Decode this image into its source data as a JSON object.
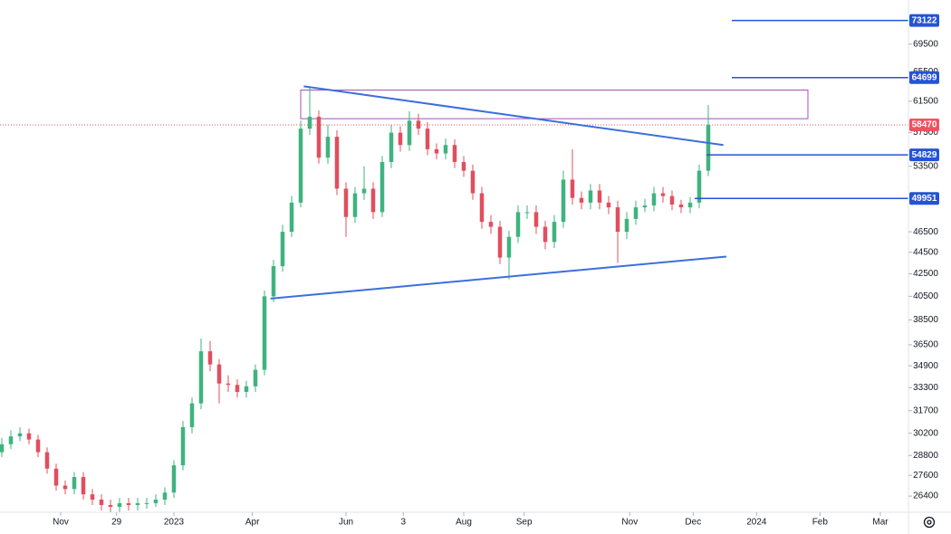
{
  "chart_data": {
    "type": "candlestick",
    "log_scale": true,
    "up_color": "#3fb37f",
    "down_color": "#e04f5f",
    "xlim": [
      0,
      300
    ],
    "ylim": [
      25500,
      76400
    ],
    "xticks": [
      {
        "value": 19.5,
        "label": "Nov"
      },
      {
        "value": 38,
        "label": "29"
      },
      {
        "value": 57,
        "label": "2023"
      },
      {
        "value": 83,
        "label": "Apr"
      },
      {
        "value": 114,
        "label": "Jun"
      },
      {
        "value": 133,
        "label": "3"
      },
      {
        "value": 153,
        "label": "Aug"
      },
      {
        "value": 173,
        "label": "Sep"
      },
      {
        "value": 208,
        "label": "Nov"
      },
      {
        "value": 229,
        "label": "Dec"
      },
      {
        "value": 250,
        "label": "2024"
      },
      {
        "value": 271,
        "label": "Feb"
      },
      {
        "value": 291,
        "label": "Mar"
      }
    ],
    "yticks": [
      26400,
      27600,
      28800,
      30200,
      31700,
      33300,
      34900,
      36500,
      38500,
      40500,
      42500,
      44500,
      46500,
      53500,
      57500,
      61500,
      65500,
      69500
    ],
    "x": [
      0,
      3,
      6,
      9,
      12,
      15,
      18,
      21,
      24,
      27,
      30,
      33,
      36,
      39,
      42,
      45,
      48,
      51,
      54,
      57,
      60,
      63,
      66,
      69,
      72,
      75,
      78,
      81,
      84,
      87,
      90,
      93,
      96,
      99,
      102,
      105,
      108,
      111,
      114,
      117,
      120,
      123,
      126,
      129,
      132,
      135,
      138,
      141,
      144,
      147,
      150,
      153,
      156,
      159,
      162,
      165,
      168,
      171,
      174,
      177,
      180,
      183,
      186,
      189,
      192,
      195,
      198,
      201,
      204,
      207,
      210,
      213,
      216,
      219,
      222,
      225,
      228,
      231,
      234
    ],
    "open": [
      29000,
      29500,
      30000,
      30200,
      29800,
      29000,
      28000,
      27000,
      26800,
      27500,
      26500,
      26200,
      25900,
      25800,
      26000,
      25900,
      26000,
      26000,
      26200,
      26600,
      28200,
      30600,
      32200,
      36000,
      35000,
      33600,
      33500,
      33000,
      33400,
      34600,
      40500,
      43200,
      46500,
      49500,
      58000,
      59500,
      54500,
      57000,
      51000,
      48000,
      50500,
      51000,
      48500,
      54000,
      57500,
      56000,
      59000,
      58000,
      55500,
      55000,
      56000,
      54000,
      53000,
      50500,
      47500,
      47000,
      44000,
      46000,
      48500,
      48500,
      47000,
      45500,
      47500,
      52000,
      50000,
      49500,
      50800,
      49500,
      49000,
      46500,
      47800,
      49000,
      49200,
      50500,
      50200,
      49300,
      49000,
      49500,
      53000
    ],
    "high": [
      29900,
      30400,
      30600,
      30500,
      30100,
      29300,
      28300,
      27300,
      27800,
      27800,
      26800,
      26500,
      26200,
      26300,
      26300,
      26300,
      26300,
      26500,
      26900,
      28500,
      31000,
      32600,
      37000,
      36800,
      35400,
      34200,
      33900,
      33800,
      35000,
      41000,
      43800,
      47200,
      50200,
      59000,
      63500,
      60300,
      58500,
      57800,
      51700,
      51200,
      53500,
      51700,
      54700,
      58500,
      58300,
      60200,
      59900,
      58800,
      56200,
      56800,
      56700,
      54700,
      53700,
      51200,
      48200,
      47600,
      46600,
      49200,
      49200,
      49200,
      47600,
      48200,
      53000,
      55500,
      50700,
      51500,
      51500,
      50200,
      49700,
      48500,
      49700,
      49900,
      51200,
      51200,
      50800,
      49800,
      50100,
      53700,
      61000
    ],
    "low": [
      28700,
      29200,
      29700,
      29500,
      28700,
      27700,
      26700,
      26500,
      26500,
      26200,
      25900,
      25600,
      25500,
      25500,
      25600,
      25600,
      25700,
      25800,
      25900,
      26300,
      27900,
      30200,
      31800,
      34500,
      32200,
      33000,
      32600,
      32600,
      33000,
      34200,
      40000,
      42700,
      46000,
      49000,
      57200,
      53800,
      53800,
      50300,
      46000,
      47400,
      49800,
      47800,
      48000,
      53300,
      55200,
      55300,
      57200,
      54800,
      54300,
      54300,
      53300,
      52300,
      49800,
      46800,
      46300,
      43400,
      42000,
      45400,
      47800,
      46300,
      44800,
      44900,
      46900,
      49300,
      48800,
      48800,
      48800,
      48300,
      43500,
      45800,
      47200,
      48500,
      48600,
      49500,
      48700,
      48400,
      48400,
      48900,
      52400
    ],
    "close": [
      29500,
      30000,
      30200,
      29800,
      29000,
      28000,
      27000,
      26800,
      27500,
      26500,
      26200,
      25900,
      25800,
      26000,
      25900,
      26000,
      26000,
      26200,
      26600,
      28200,
      30600,
      32200,
      36000,
      35000,
      33600,
      33500,
      33000,
      33400,
      34600,
      40500,
      43200,
      46500,
      49500,
      58000,
      59500,
      54500,
      57000,
      51000,
      48000,
      50500,
      51000,
      48500,
      54000,
      57500,
      56000,
      59000,
      58000,
      55500,
      55000,
      56000,
      54000,
      53000,
      50500,
      47500,
      47000,
      44000,
      46000,
      48500,
      48500,
      47000,
      45500,
      47500,
      52000,
      50000,
      49500,
      50800,
      49500,
      49000,
      46500,
      47800,
      49000,
      49200,
      50500,
      50200,
      49300,
      49000,
      49500,
      53000,
      58470
    ],
    "last_price": 58470,
    "last_price_color": "#f0515f",
    "horizontal_lines": [
      {
        "value": 73122,
        "from_x": 241.8,
        "color": "#2453d6"
      },
      {
        "value": 64699,
        "from_x": 241.8,
        "color": "#2453d6"
      },
      {
        "value": 54829,
        "from_x": 233.4,
        "color": "#2453d6"
      },
      {
        "value": 49951,
        "from_x": 229.5,
        "color": "#2453d6"
      }
    ],
    "trend_lines": [
      {
        "x": [
          100,
          239
        ],
        "y": [
          63500,
          56000
        ],
        "color": "#3c6fdc"
      },
      {
        "x": [
          89,
          240
        ],
        "y": [
          40300,
          44100
        ],
        "color": "#3c6fdc"
      }
    ],
    "rectangle": {
      "x": [
        99,
        267
      ],
      "y": [
        59250,
        63000
      ],
      "color": "#a450b5"
    }
  }
}
